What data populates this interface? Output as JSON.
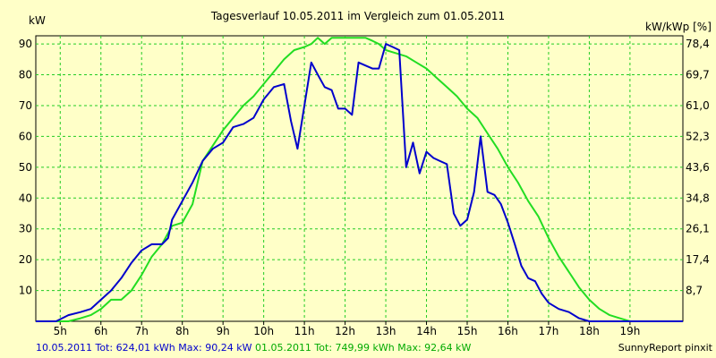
{
  "chart_data": {
    "type": "line",
    "title": "Tagesverlauf 10.05.2011 im Vergleich zum 01.05.2011",
    "ylabel_left": "kW",
    "ylabel_right": "kW/kWp [%]",
    "xlim": [
      4.4,
      20.3
    ],
    "ylim": [
      0,
      92.64
    ],
    "x_ticks": [
      5,
      6,
      7,
      8,
      9,
      10,
      11,
      12,
      13,
      14,
      15,
      16,
      17,
      18,
      19
    ],
    "x_tick_labels": [
      "5h",
      "6h",
      "7h",
      "8h",
      "9h",
      "10h",
      "11h",
      "12h",
      "13h",
      "14h",
      "15h",
      "16h",
      "17h",
      "18h",
      "19h"
    ],
    "y_ticks_left": [
      10,
      20,
      30,
      40,
      50,
      60,
      70,
      80,
      90
    ],
    "y_tick_labels_left": [
      "10",
      "20",
      "30",
      "40",
      "50",
      "60",
      "70",
      "80",
      "90"
    ],
    "y_tick_labels_right": [
      "8,7",
      "17,4",
      "26,1",
      "34,8",
      "43,6",
      "52,3",
      "61,0",
      "69,7",
      "78,4"
    ],
    "grid": true,
    "series": [
      {
        "name": "10.05.2011",
        "color": "#0000cc",
        "x": [
          4.4,
          4.9,
          5.2,
          5.5,
          5.75,
          6.0,
          6.25,
          6.5,
          6.75,
          7.0,
          7.25,
          7.5,
          7.65,
          7.75,
          8.0,
          8.25,
          8.5,
          8.75,
          9.0,
          9.25,
          9.5,
          9.75,
          10.0,
          10.25,
          10.5,
          10.67,
          10.83,
          11.0,
          11.17,
          11.33,
          11.5,
          11.67,
          11.83,
          12.0,
          12.17,
          12.33,
          12.5,
          12.67,
          12.83,
          13.0,
          13.17,
          13.33,
          13.5,
          13.67,
          13.83,
          14.0,
          14.17,
          14.33,
          14.5,
          14.67,
          14.83,
          15.0,
          15.17,
          15.33,
          15.5,
          15.67,
          15.83,
          16.0,
          16.17,
          16.33,
          16.5,
          16.67,
          16.83,
          17.0,
          17.25,
          17.5,
          17.75,
          18.0,
          18.25,
          18.5,
          18.75,
          19.0,
          19.25,
          19.5,
          19.75,
          20.3
        ],
        "values": [
          0,
          0,
          2,
          3,
          4,
          7,
          10,
          14,
          19,
          23,
          25,
          25,
          27,
          33,
          39,
          45,
          52,
          56,
          58,
          63,
          64,
          66,
          72,
          76,
          77,
          65,
          56,
          70,
          84,
          80,
          76,
          75,
          69,
          69,
          67,
          84,
          83,
          82,
          82,
          90,
          89,
          88,
          50,
          58,
          48,
          55,
          53,
          52,
          51,
          35,
          31,
          33,
          42,
          60,
          42,
          41,
          38,
          32,
          25,
          18,
          14,
          13,
          9,
          6,
          4,
          3,
          1,
          0,
          0,
          0,
          0,
          0,
          0,
          0,
          0,
          0
        ]
      },
      {
        "name": "01.05.2011",
        "color": "#22dd22",
        "x": [
          4.4,
          4.9,
          5.2,
          5.5,
          5.75,
          6.0,
          6.25,
          6.5,
          6.75,
          7.0,
          7.25,
          7.5,
          7.75,
          8.0,
          8.25,
          8.5,
          8.75,
          9.0,
          9.25,
          9.5,
          9.75,
          10.0,
          10.25,
          10.5,
          10.75,
          11.0,
          11.17,
          11.33,
          11.5,
          11.67,
          11.83,
          12.0,
          12.17,
          12.33,
          12.5,
          12.67,
          12.83,
          13.0,
          13.25,
          13.5,
          13.75,
          14.0,
          14.25,
          14.5,
          14.75,
          15.0,
          15.25,
          15.5,
          15.75,
          16.0,
          16.25,
          16.5,
          16.75,
          17.0,
          17.25,
          17.5,
          17.75,
          18.0,
          18.25,
          18.5,
          18.75,
          19.0,
          19.25,
          19.5,
          19.75,
          20.3
        ],
        "values": [
          0,
          0,
          0,
          1,
          2,
          4,
          7,
          7,
          10,
          15,
          21,
          25,
          31,
          32,
          38,
          52,
          57,
          62,
          66,
          70,
          73,
          77,
          81,
          85,
          88,
          89,
          90,
          92,
          90,
          92,
          92,
          92,
          92,
          92,
          92,
          91,
          90,
          88,
          87,
          86,
          84,
          82,
          79,
          76,
          73,
          69,
          66,
          61,
          56,
          50,
          45,
          39,
          34,
          27,
          21,
          16,
          11,
          7,
          4,
          2,
          1,
          0,
          0,
          0,
          0,
          0
        ]
      }
    ]
  },
  "footer": {
    "series1_text": "10.05.2011 Tot: 624,01 kWh Max: 90,24 kW",
    "series2_text": "01.05.2011 Tot: 749,99 kWh Max: 92,64 kW",
    "credit": "SunnyReport pinxit"
  }
}
